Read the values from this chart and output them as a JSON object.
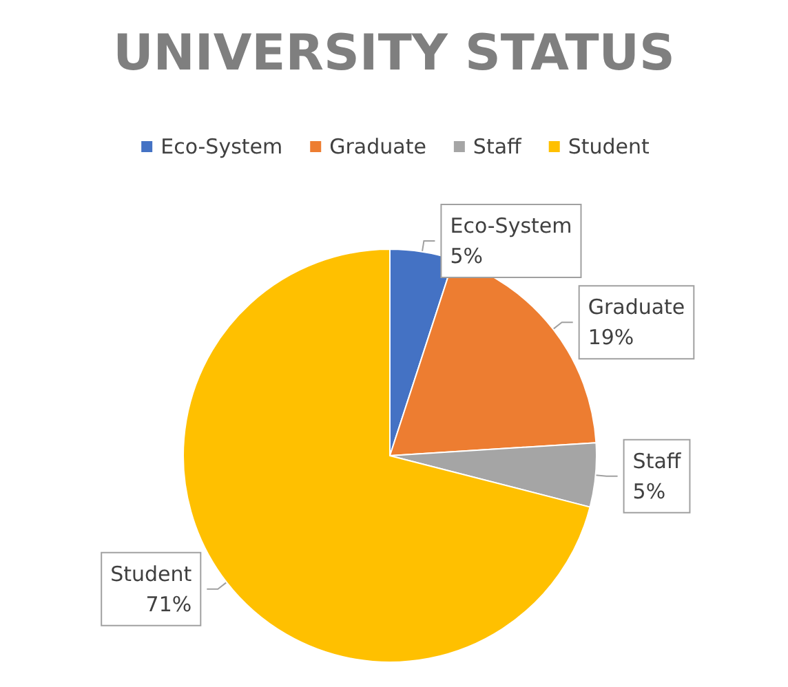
{
  "chart_data": {
    "type": "pie",
    "title": "UNIVERSITY STATUS",
    "categories": [
      "Eco-System",
      "Graduate",
      "Staff",
      "Student"
    ],
    "values": [
      5,
      19,
      5,
      71
    ],
    "colors": [
      "#4472c4",
      "#ed7d31",
      "#a5a5a5",
      "#ffc000"
    ],
    "value_labels": [
      "5%",
      "19%",
      "5%",
      "71%"
    ],
    "legend": "top"
  }
}
